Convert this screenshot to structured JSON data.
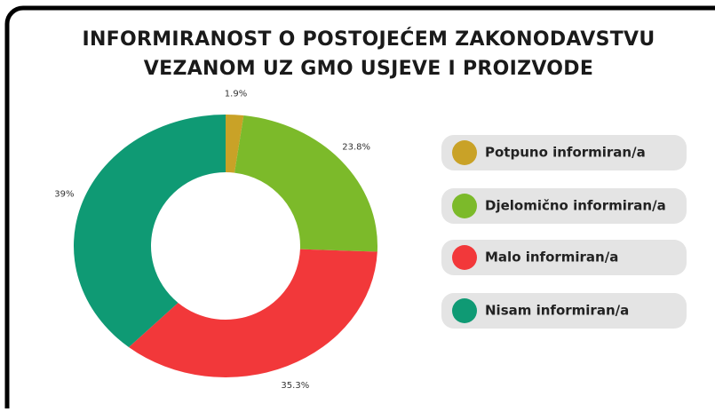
{
  "chart_data": {
    "type": "donut",
    "title": [
      "INFORMIRANOST O POSTOJEĆEM ZAKONODAVSTVU",
      "VEZANOM UZ GMO USJEVE I PROIZVODE"
    ],
    "categories": [
      "Potpuno informiran/a",
      "Djelomično informiran/a",
      "Malo informiran/a",
      "Nisam informiran/a"
    ],
    "values": [
      1.9,
      23.8,
      35.3,
      39
    ],
    "value_labels": [
      "1.9%",
      "23.8%",
      "35.3%",
      "39%"
    ],
    "colors": [
      "#c9a227",
      "#7cba2a",
      "#f2383a",
      "#0f9a74"
    ],
    "legend": "right"
  }
}
